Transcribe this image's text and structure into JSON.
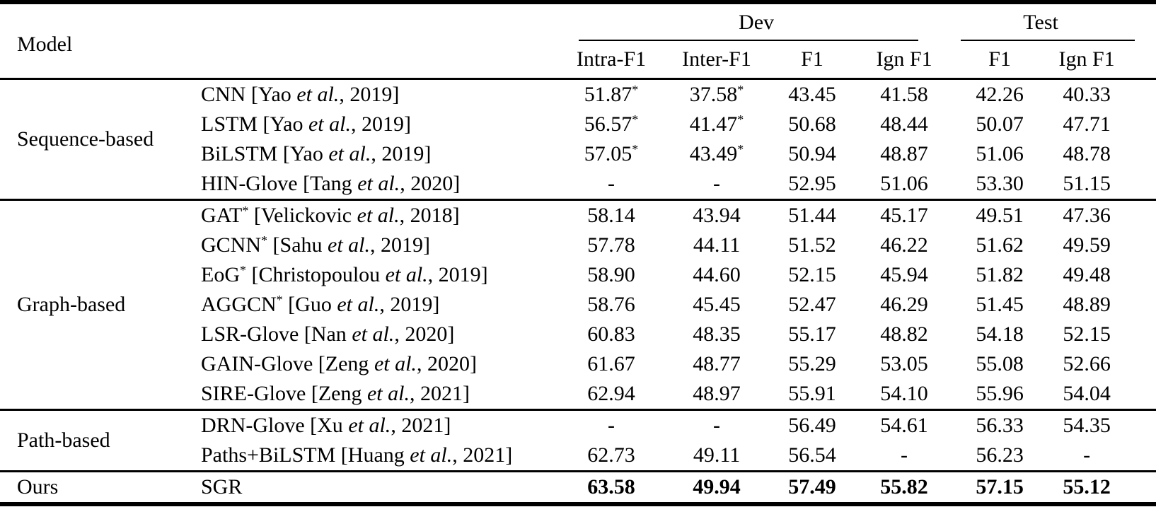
{
  "table": {
    "etal": "et al.",
    "header": {
      "model_label": "Model",
      "dev_label": "Dev",
      "test_label": "Test",
      "columns": [
        "Intra-F1",
        "Inter-F1",
        "F1",
        "Ign F1",
        "F1",
        "Ign F1"
      ]
    },
    "sections": [
      {
        "group": "Sequence-based",
        "rows": [
          {
            "name": "CNN",
            "cite_pre": "[Yao ",
            "cite_post": ", 2019]",
            "values": [
              "51.87*",
              "37.58*",
              "43.45",
              "41.58",
              "42.26",
              "40.33"
            ]
          },
          {
            "name": "LSTM",
            "cite_pre": "[Yao ",
            "cite_post": ", 2019]",
            "values": [
              "56.57*",
              "41.47*",
              "50.68",
              "48.44",
              "50.07",
              "47.71"
            ]
          },
          {
            "name": "BiLSTM",
            "cite_pre": "[Yao ",
            "cite_post": ", 2019]",
            "values": [
              "57.05*",
              "43.49*",
              "50.94",
              "48.87",
              "51.06",
              "48.78"
            ]
          },
          {
            "name": "HIN-Glove",
            "cite_pre": "[Tang ",
            "cite_post": ", 2020]",
            "values": [
              "-",
              "-",
              "52.95",
              "51.06",
              "53.30",
              "51.15"
            ]
          }
        ]
      },
      {
        "group": "Graph-based",
        "rows": [
          {
            "name": "GAT*",
            "cite_pre": "[Velickovic ",
            "cite_post": ", 2018]",
            "values": [
              "58.14",
              "43.94",
              "51.44",
              "45.17",
              "49.51",
              "47.36"
            ]
          },
          {
            "name": "GCNN*",
            "cite_pre": "[Sahu ",
            "cite_post": ", 2019]",
            "values": [
              "57.78",
              "44.11",
              "51.52",
              "46.22",
              "51.62",
              "49.59"
            ]
          },
          {
            "name": "EoG*",
            "cite_pre": "[Christopoulou ",
            "cite_post": ", 2019]",
            "values": [
              "58.90",
              "44.60",
              "52.15",
              "45.94",
              "51.82",
              "49.48"
            ]
          },
          {
            "name": "AGGCN*",
            "cite_pre": "[Guo ",
            "cite_post": ", 2019]",
            "values": [
              "58.76",
              "45.45",
              "52.47",
              "46.29",
              "51.45",
              "48.89"
            ]
          },
          {
            "name": "LSR-Glove",
            "cite_pre": "[Nan ",
            "cite_post": ", 2020]",
            "values": [
              "60.83",
              "48.35",
              "55.17",
              "48.82",
              "54.18",
              "52.15"
            ]
          },
          {
            "name": "GAIN-Glove",
            "cite_pre": "[Zeng ",
            "cite_post": ", 2020]",
            "values": [
              "61.67",
              "48.77",
              "55.29",
              "53.05",
              "55.08",
              "52.66"
            ]
          },
          {
            "name": "SIRE-Glove",
            "cite_pre": "[Zeng ",
            "cite_post": ", 2021]",
            "values": [
              "62.94",
              "48.97",
              "55.91",
              "54.10",
              "55.96",
              "54.04"
            ]
          }
        ]
      },
      {
        "group": "Path-based",
        "rows": [
          {
            "name": "DRN-Glove",
            "cite_pre": "[Xu ",
            "cite_post": ", 2021]",
            "values": [
              "-",
              "-",
              "56.49",
              "54.61",
              "56.33",
              "54.35"
            ]
          },
          {
            "name": "Paths+BiLSTM",
            "cite_pre": "[Huang ",
            "cite_post": ", 2021]",
            "values": [
              "62.73",
              "49.11",
              "56.54",
              "-",
              "56.23",
              "-"
            ]
          }
        ]
      },
      {
        "group": "Ours",
        "rows": [
          {
            "name": "SGR",
            "cite_pre": "",
            "cite_post": "",
            "bold": true,
            "values": [
              "63.58",
              "49.94",
              "57.49",
              "55.82",
              "57.15",
              "55.12"
            ]
          }
        ]
      }
    ]
  }
}
